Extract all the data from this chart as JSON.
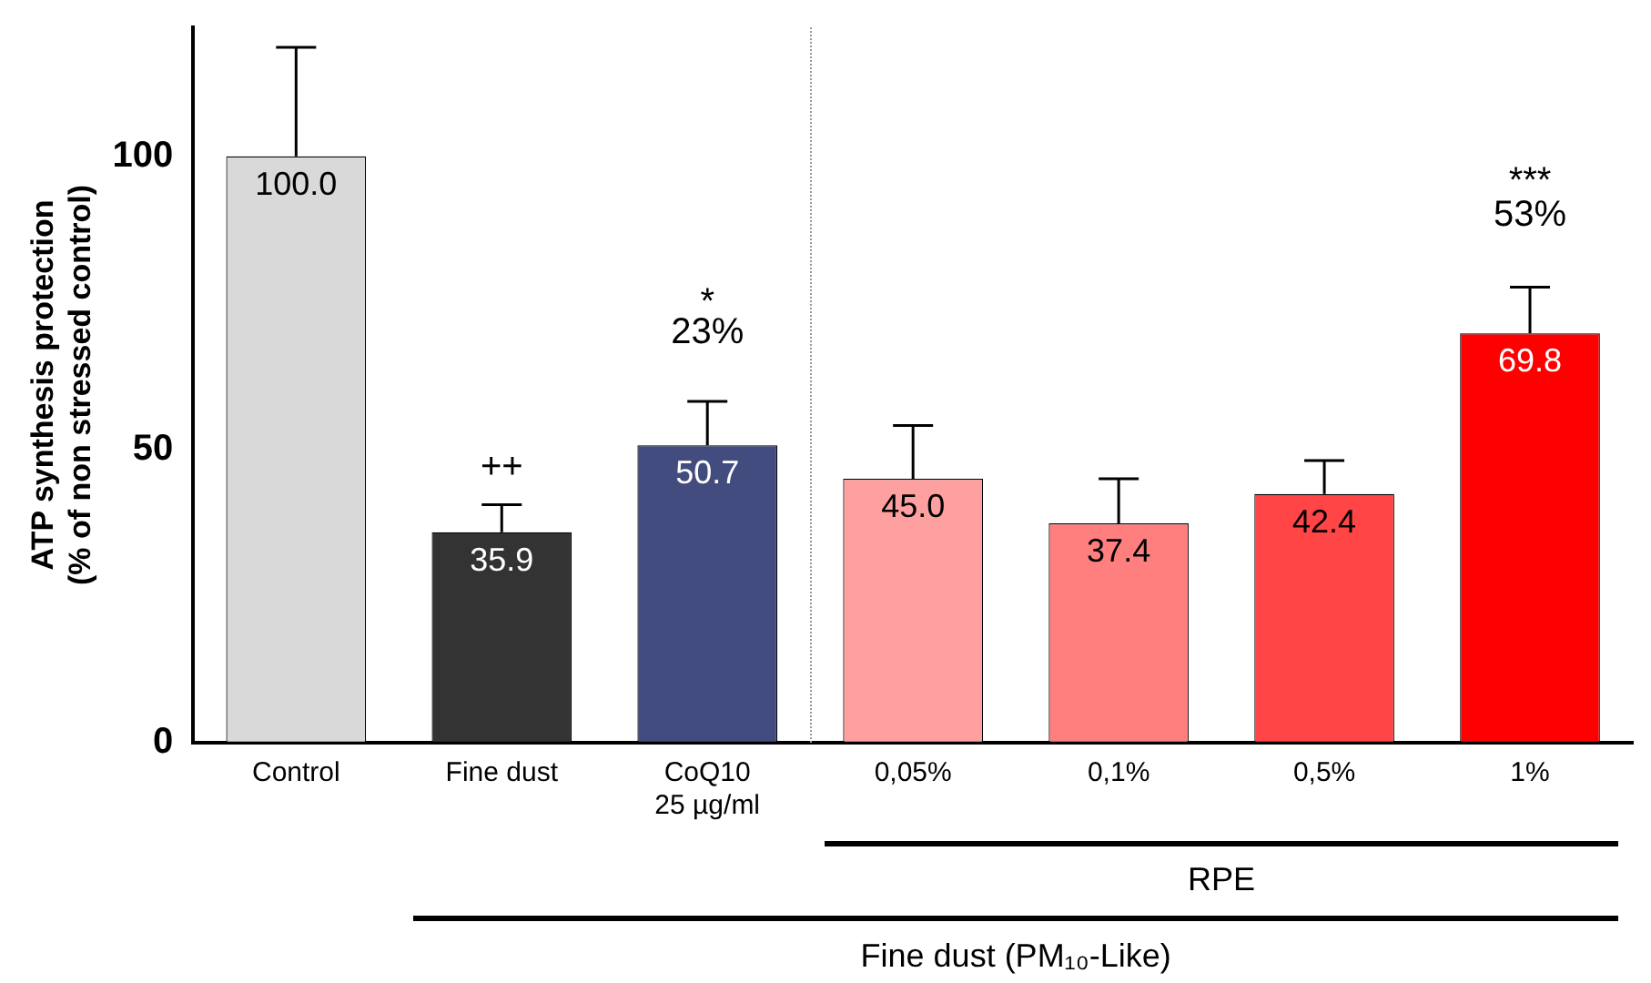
{
  "chart_data": {
    "type": "bar",
    "ylabel": "ATP synthesis protection\n(% of non stressed control)",
    "categories": [
      "Control",
      "Fine dust",
      "CoQ10\n25 µg/ml",
      "0,05%",
      "0,1%",
      "0,5%",
      "1%"
    ],
    "values": [
      100.0,
      35.9,
      50.7,
      45.0,
      37.4,
      42.4,
      69.8
    ],
    "colors": [
      "#d9d9d9",
      "#333333",
      "#434c7e",
      "#ffa0a0",
      "#ff7f7f",
      "#ff4545",
      "#ff0000"
    ],
    "errors": [
      [
        100.0,
        118.6
      ],
      [
        35.9,
        40.6
      ],
      [
        50.7,
        58.2
      ],
      [
        45.0,
        54.1
      ],
      [
        37.4,
        45.0
      ],
      [
        42.4,
        48.1
      ],
      [
        69.8,
        77.7
      ]
    ],
    "value_labels": [
      "100.0",
      "35.9",
      "50.7",
      "45.0",
      "37.4",
      "42.4",
      "69.8"
    ],
    "ylim": [
      0,
      122
    ],
    "yticks": [
      0,
      50,
      100
    ],
    "grid": false,
    "legend": false,
    "annotations": [
      "++",
      "*",
      "23%",
      "***",
      "53%",
      "RPE",
      "Fine dust (PM₁₀-Like)"
    ]
  }
}
